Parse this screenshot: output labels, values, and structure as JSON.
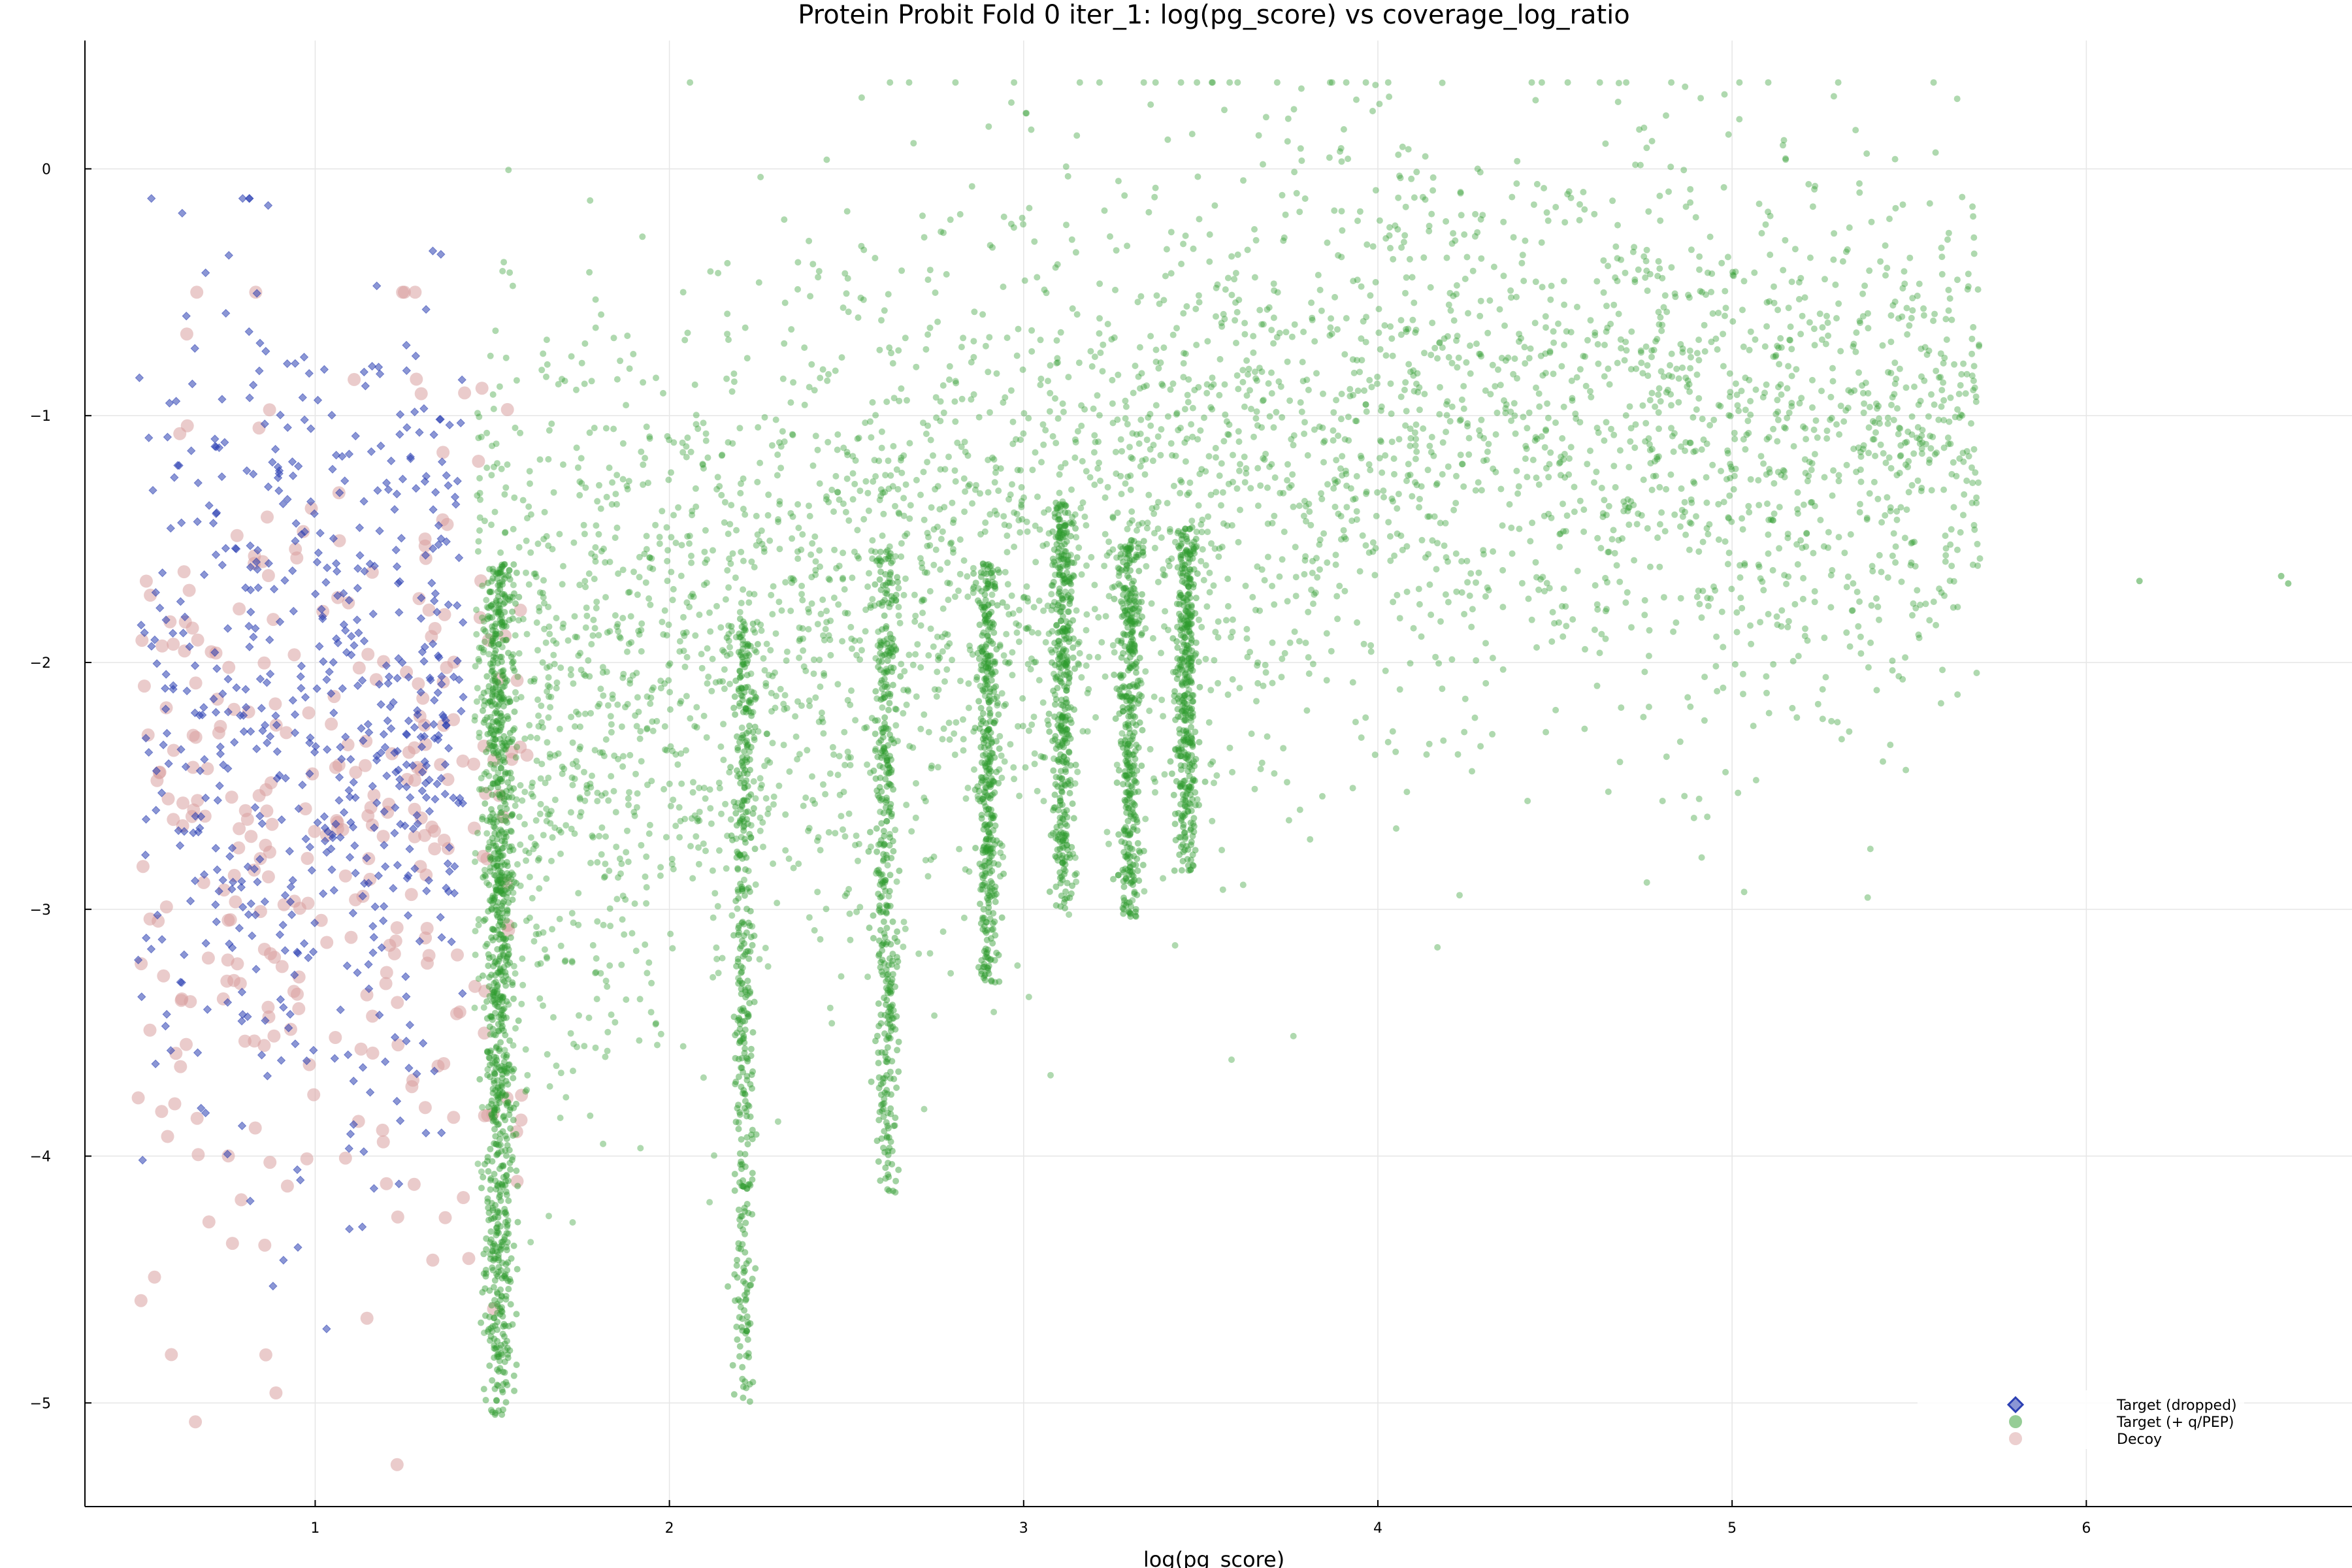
{
  "chart_data": {
    "type": "scatter",
    "title": "Protein Probit Fold 0 iter_1: log(pg_score) vs coverage_log_ratio",
    "xlabel": "log(pg_score)",
    "ylabel": "",
    "xlim": [
      0.35,
      6.75
    ],
    "ylim": [
      -5.42,
      0.52
    ],
    "xticks": [
      1,
      2,
      3,
      4,
      5,
      6
    ],
    "yticks": [
      0,
      -1,
      -2,
      -3,
      -4,
      -5
    ],
    "xtick_labels": [
      "1",
      "2",
      "3",
      "4",
      "5",
      "6"
    ],
    "ytick_labels": [
      "0",
      "−1",
      "−2",
      "−3",
      "−4",
      "−5"
    ],
    "grid": true,
    "legend_position": "bottom-right",
    "series": [
      {
        "name": "Target (dropped)",
        "marker": "diamond",
        "color": "#2b3fb3",
        "description_x_range": [
          0.5,
          1.42
        ],
        "description_y_range": [
          -4.7,
          -0.12
        ]
      },
      {
        "name": "Target (+ q/PEP)",
        "marker": "circle",
        "color": "#2e9b2e",
        "clusters": [
          {
            "x_center": 1.52,
            "x_spread": 0.02,
            "y_range": [
              -5.05,
              -1.6
            ]
          },
          {
            "x_center": 2.21,
            "x_spread": 0.015,
            "y_range": [
              -5.0,
              -1.8
            ]
          },
          {
            "x_center": 2.61,
            "x_spread": 0.015,
            "y_range": [
              -4.15,
              -1.55
            ]
          },
          {
            "x_center": 2.9,
            "x_spread": 0.015,
            "y_range": [
              -3.3,
              -1.6
            ]
          },
          {
            "x_center": 3.11,
            "x_spread": 0.015,
            "y_range": [
              -3.0,
              -1.35
            ]
          },
          {
            "x_center": 3.3,
            "x_spread": 0.015,
            "y_range": [
              -3.05,
              -1.5
            ]
          },
          {
            "x_center": 3.46,
            "x_spread": 0.015,
            "y_range": [
              -2.85,
              -1.45
            ]
          }
        ],
        "cloud_x_range": [
          1.45,
          5.7
        ],
        "cloud_y_range": [
          -5.0,
          0.35
        ],
        "outliers": [
          [
            6.15,
            -1.67
          ],
          [
            6.55,
            -1.65
          ],
          [
            6.57,
            -1.68
          ]
        ]
      },
      {
        "name": "Decoy",
        "marker": "circle",
        "color": "#d9a0a0",
        "description_x_range": [
          0.5,
          1.6
        ],
        "description_y_range": [
          -5.25,
          -0.5
        ]
      }
    ]
  }
}
